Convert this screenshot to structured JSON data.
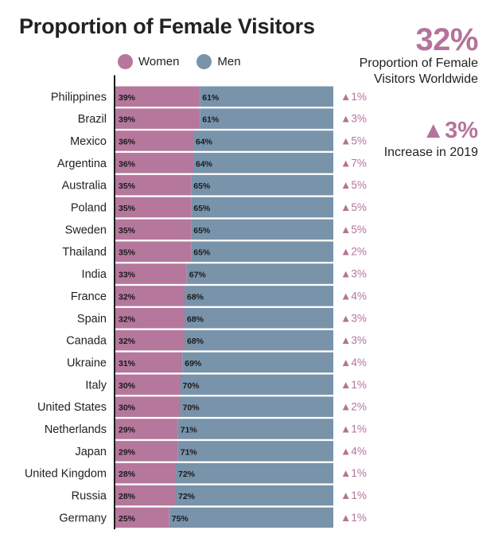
{
  "title": "Proportion of Female Visitors",
  "legend": {
    "women": "Women",
    "men": "Men"
  },
  "colors": {
    "women": "#b5779c",
    "men": "#7893aa",
    "accent": "#b4739a"
  },
  "stats": {
    "worldwide_pct": "32%",
    "worldwide_label": "Proportion of Female Visitors Worldwide",
    "increase": "3%",
    "increase_label": "Increase in 2019"
  },
  "chart_data": {
    "type": "bar",
    "stacked": true,
    "orientation": "horizontal",
    "title": "Proportion of Female Visitors",
    "categories": [
      "Philippines",
      "Brazil",
      "Mexico",
      "Argentina",
      "Australia",
      "Poland",
      "Sweden",
      "Thailand",
      "India",
      "France",
      "Spain",
      "Canada",
      "Ukraine",
      "Italy",
      "United States",
      "Netherlands",
      "Japan",
      "United Kingdom",
      "Russia",
      "Germany"
    ],
    "series": [
      {
        "name": "Women",
        "values": [
          39,
          39,
          36,
          36,
          35,
          35,
          35,
          35,
          33,
          32,
          32,
          32,
          31,
          30,
          30,
          29,
          29,
          28,
          28,
          25
        ]
      },
      {
        "name": "Men",
        "values": [
          61,
          61,
          64,
          64,
          65,
          65,
          65,
          65,
          67,
          68,
          68,
          68,
          69,
          70,
          70,
          71,
          71,
          72,
          72,
          75
        ]
      }
    ],
    "change": [
      1,
      3,
      5,
      7,
      5,
      5,
      5,
      2,
      3,
      4,
      3,
      3,
      4,
      1,
      2,
      1,
      4,
      1,
      1,
      1
    ],
    "xlim": [
      0,
      100
    ],
    "legend_position": "top"
  }
}
